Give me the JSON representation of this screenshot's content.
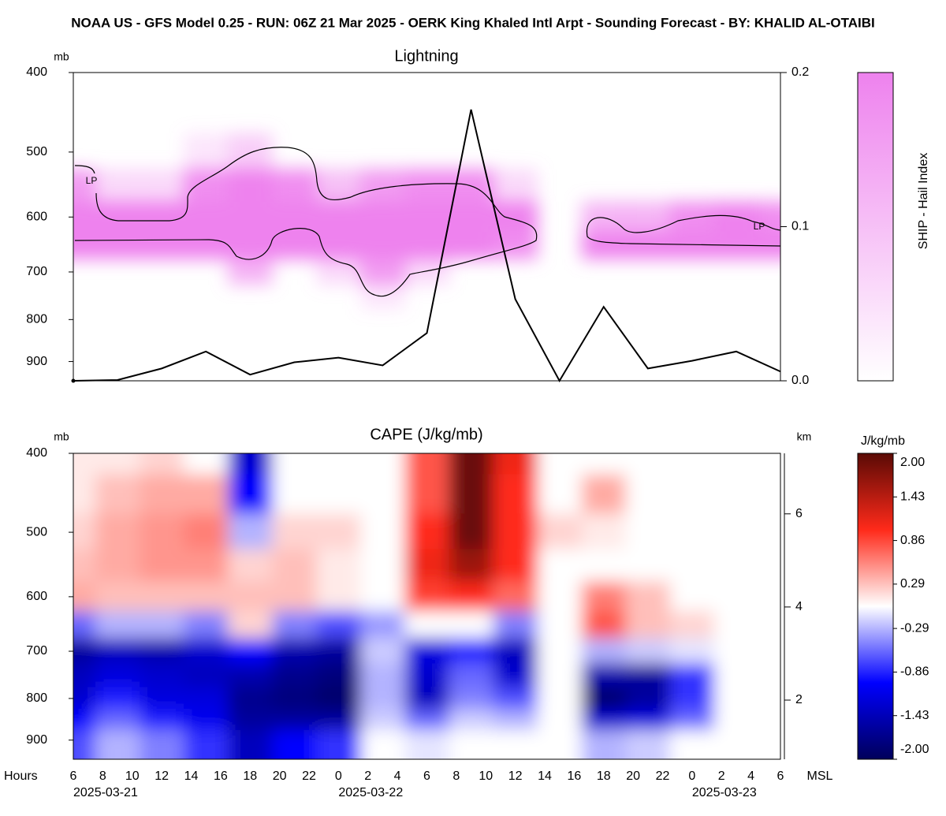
{
  "title": "NOAA US - GFS Model 0.25  - RUN: 06Z 21 Mar 2025 - OERK King Khaled Intl Arpt - Sounding Forecast - BY: KHALID AL-OTAIBI",
  "chart_data": [
    {
      "type": "heatmap",
      "title": "Lightning",
      "ylabel": "mb",
      "ylim": [
        950,
        400
      ],
      "ylog": true,
      "yticks": [
        400,
        500,
        600,
        700,
        800,
        900
      ],
      "x": [
        "2025-03-21T06:00",
        "2025-03-21T09:00",
        "2025-03-21T12:00",
        "2025-03-21T15:00",
        "2025-03-21T18:00",
        "2025-03-21T21:00",
        "2025-03-22T00:00",
        "2025-03-22T03:00",
        "2025-03-22T06:00",
        "2025-03-22T09:00",
        "2025-03-22T12:00",
        "2025-03-22T15:00",
        "2025-03-22T18:00",
        "2025-03-22T21:00",
        "2025-03-23T00:00",
        "2025-03-23T03:00",
        "2025-03-23T06:00"
      ],
      "xlim": [
        "2025-03-21T06:00",
        "2025-03-23T06:00"
      ],
      "levels": [
        450,
        500,
        550,
        600,
        650,
        700,
        750
      ],
      "z": [
        [
          0,
          0,
          0,
          0,
          0,
          0,
          0,
          0,
          0,
          0,
          0,
          0,
          0,
          0,
          0,
          0,
          0
        ],
        [
          0,
          0,
          0,
          0.2,
          0.4,
          0,
          0,
          0,
          0,
          0,
          0,
          0,
          0,
          0,
          0,
          0,
          0
        ],
        [
          0.8,
          0.3,
          0.3,
          0.9,
          1,
          0.9,
          0.5,
          0.8,
          0.9,
          0.9,
          0.3,
          0,
          0,
          0,
          0,
          0,
          0
        ],
        [
          1,
          1,
          1,
          1,
          1,
          1,
          1,
          1,
          1,
          1,
          1,
          0,
          0.6,
          0.6,
          0.9,
          1,
          0.9
        ],
        [
          1,
          1,
          1,
          1,
          1,
          1,
          1,
          1,
          1,
          1,
          0.9,
          0,
          1,
          1,
          1,
          1,
          1
        ],
        [
          0,
          0,
          0,
          0,
          0.6,
          0,
          0.3,
          0.8,
          0.3,
          0,
          0,
          0,
          0,
          0,
          0,
          0,
          0
        ],
        [
          0,
          0,
          0,
          0,
          0,
          0,
          0,
          0.2,
          0,
          0,
          0,
          0,
          0,
          0,
          0,
          0,
          0
        ]
      ],
      "color": "#ee82ee",
      "colorbar_label": "SHIP - Hail Index",
      "annotations": [
        "LP",
        "LP"
      ],
      "y2lim": [
        0,
        0.2
      ],
      "y2ticks": [
        {
          "value": 0,
          "label": "0.0"
        },
        0.1,
        0.2
      ],
      "series": [
        {
          "color": "#000000",
          "axis": "y2",
          "values": [
            0,
            0.0005,
            0.008,
            0.019,
            0.004,
            0.012,
            0.015,
            0.01,
            0.031,
            0.176,
            0.053,
            0,
            0.048,
            0.008,
            0.013,
            0.019,
            0.006
          ]
        }
      ]
    },
    {
      "type": "heatmap",
      "title": "CAPE (J/kg/mb)",
      "ylabel": "mb",
      "ylim": [
        950,
        400
      ],
      "ylog": true,
      "yticks": [
        400,
        500,
        600,
        700,
        800,
        900
      ],
      "x": [
        "2025-03-21T06:00",
        "2025-03-21T09:00",
        "2025-03-21T12:00",
        "2025-03-21T15:00",
        "2025-03-21T18:00",
        "2025-03-21T21:00",
        "2025-03-22T00:00",
        "2025-03-22T03:00",
        "2025-03-22T06:00",
        "2025-03-22T09:00",
        "2025-03-22T12:00",
        "2025-03-22T15:00",
        "2025-03-22T18:00",
        "2025-03-22T21:00",
        "2025-03-23T00:00",
        "2025-03-23T03:00",
        "2025-03-23T06:00"
      ],
      "xlim": [
        "2025-03-21T06:00",
        "2025-03-23T06:00"
      ],
      "xlabel": "Hours",
      "xticks": [
        {
          "value": "2025-03-21T06:00",
          "label": "6"
        },
        {
          "value": "2025-03-21T08:00",
          "label": "8"
        },
        {
          "value": "2025-03-21T10:00",
          "label": "10"
        },
        {
          "value": "2025-03-21T12:00",
          "label": "12"
        },
        {
          "value": "2025-03-21T14:00",
          "label": "14"
        },
        {
          "value": "2025-03-21T16:00",
          "label": "16"
        },
        {
          "value": "2025-03-21T18:00",
          "label": "18"
        },
        {
          "value": "2025-03-21T20:00",
          "label": "20"
        },
        {
          "value": "2025-03-21T22:00",
          "label": "22"
        },
        {
          "value": "2025-03-22T00:00",
          "label": "0"
        },
        {
          "value": "2025-03-22T02:00",
          "label": "2"
        },
        {
          "value": "2025-03-22T04:00",
          "label": "4"
        },
        {
          "value": "2025-03-22T06:00",
          "label": "6"
        },
        {
          "value": "2025-03-22T08:00",
          "label": "8"
        },
        {
          "value": "2025-03-22T10:00",
          "label": "10"
        },
        {
          "value": "2025-03-22T12:00",
          "label": "12"
        },
        {
          "value": "2025-03-22T14:00",
          "label": "14"
        },
        {
          "value": "2025-03-22T16:00",
          "label": "16"
        },
        {
          "value": "2025-03-22T18:00",
          "label": "18"
        },
        {
          "value": "2025-03-22T20:00",
          "label": "20"
        },
        {
          "value": "2025-03-22T22:00",
          "label": "22"
        },
        {
          "value": "2025-03-23T00:00",
          "label": "0"
        },
        {
          "value": "2025-03-23T02:00",
          "label": "2"
        },
        {
          "value": "2025-03-23T04:00",
          "label": "4"
        },
        {
          "value": "2025-03-23T06:00",
          "label": "6"
        }
      ],
      "date_labels": [
        {
          "value": "2025-03-21T06:00",
          "label": "2025-03-21"
        },
        {
          "value": "2025-03-22T00:00",
          "label": "2025-03-22"
        },
        {
          "value": "2025-03-23T00:00",
          "label": "2025-03-23"
        }
      ],
      "y2label": "km",
      "y2footer": "MSL",
      "y2lim": [
        0.73,
        7.3
      ],
      "y2ticks": [
        2,
        4,
        6
      ],
      "levels": [
        400,
        450,
        500,
        550,
        600,
        650,
        700,
        750,
        800,
        850,
        900
      ],
      "z": [
        [
          0.1,
          0.1,
          0.2,
          0,
          -1.3,
          0,
          0,
          0,
          0.8,
          1.9,
          1.1,
          0,
          0,
          0,
          0,
          0,
          0
        ],
        [
          0.1,
          0.3,
          0.4,
          0.4,
          -1.0,
          0,
          0,
          0,
          0.8,
          1.9,
          1.0,
          0,
          0.4,
          0,
          0,
          0,
          0
        ],
        [
          0.2,
          0.4,
          0.5,
          0.6,
          -0.3,
          0.2,
          0.2,
          0,
          1.0,
          1.9,
          1.0,
          0.2,
          0.1,
          0,
          0,
          0,
          0
        ],
        [
          0.3,
          0.4,
          0.5,
          0.5,
          0.2,
          0.3,
          0.1,
          0,
          1.1,
          1.6,
          1.0,
          0,
          0,
          0,
          0,
          0,
          0
        ],
        [
          0.4,
          0.3,
          0.3,
          0.3,
          0.3,
          0.3,
          0.1,
          0,
          0.9,
          1.0,
          0.7,
          0,
          0.6,
          0.3,
          0,
          0,
          0
        ],
        [
          -0.6,
          -0.3,
          -0.3,
          -0.5,
          0.2,
          -0.5,
          -0.7,
          -0.4,
          0,
          0,
          -0.5,
          0,
          0.8,
          0.3,
          0.2,
          0,
          0
        ],
        [
          -1.6,
          -1.4,
          -1.5,
          -1.3,
          -1.0,
          -1.5,
          -1.6,
          -0.2,
          -1.2,
          -0.9,
          -1.4,
          0,
          -0.3,
          -0.2,
          -0.1,
          0,
          0
        ],
        [
          -1.4,
          -1.2,
          -1.3,
          -1.4,
          -1.5,
          -1.7,
          -1.8,
          -0.3,
          -1.3,
          -0.6,
          -1.3,
          0,
          -1.5,
          -1.6,
          -0.8,
          0,
          0
        ],
        [
          -1.3,
          -0.9,
          -1.2,
          -1.2,
          -1.7,
          -1.8,
          -1.9,
          -0.3,
          -1.4,
          -0.5,
          -0.7,
          0,
          -1.9,
          -1.6,
          -0.8,
          0,
          0
        ],
        [
          -1.0,
          -0.6,
          -0.9,
          -1.1,
          -1.6,
          -1.6,
          -1.6,
          -0.2,
          -0.6,
          -0.2,
          -0.3,
          0,
          -1.3,
          -1.2,
          -0.6,
          0,
          0
        ],
        [
          -0.7,
          -0.3,
          -0.5,
          -0.8,
          -1.4,
          -1.0,
          -0.8,
          0,
          -0.1,
          0,
          0,
          0,
          -0.3,
          -0.2,
          0,
          0,
          0
        ]
      ],
      "zlim": [
        -2,
        2
      ],
      "colors": [
        "#00005a",
        "#0000ff",
        "#ffffff",
        "#ff2a1a",
        "#5a0a05"
      ],
      "colorbar_label": "J/kg/mb",
      "colorbar_ticks": [
        {
          "value": 2,
          "label": "2.00"
        },
        1.43,
        0.86,
        0.29,
        -0.29,
        -0.86,
        -1.43,
        {
          "value": -2,
          "label": "-2.00"
        }
      ]
    }
  ]
}
